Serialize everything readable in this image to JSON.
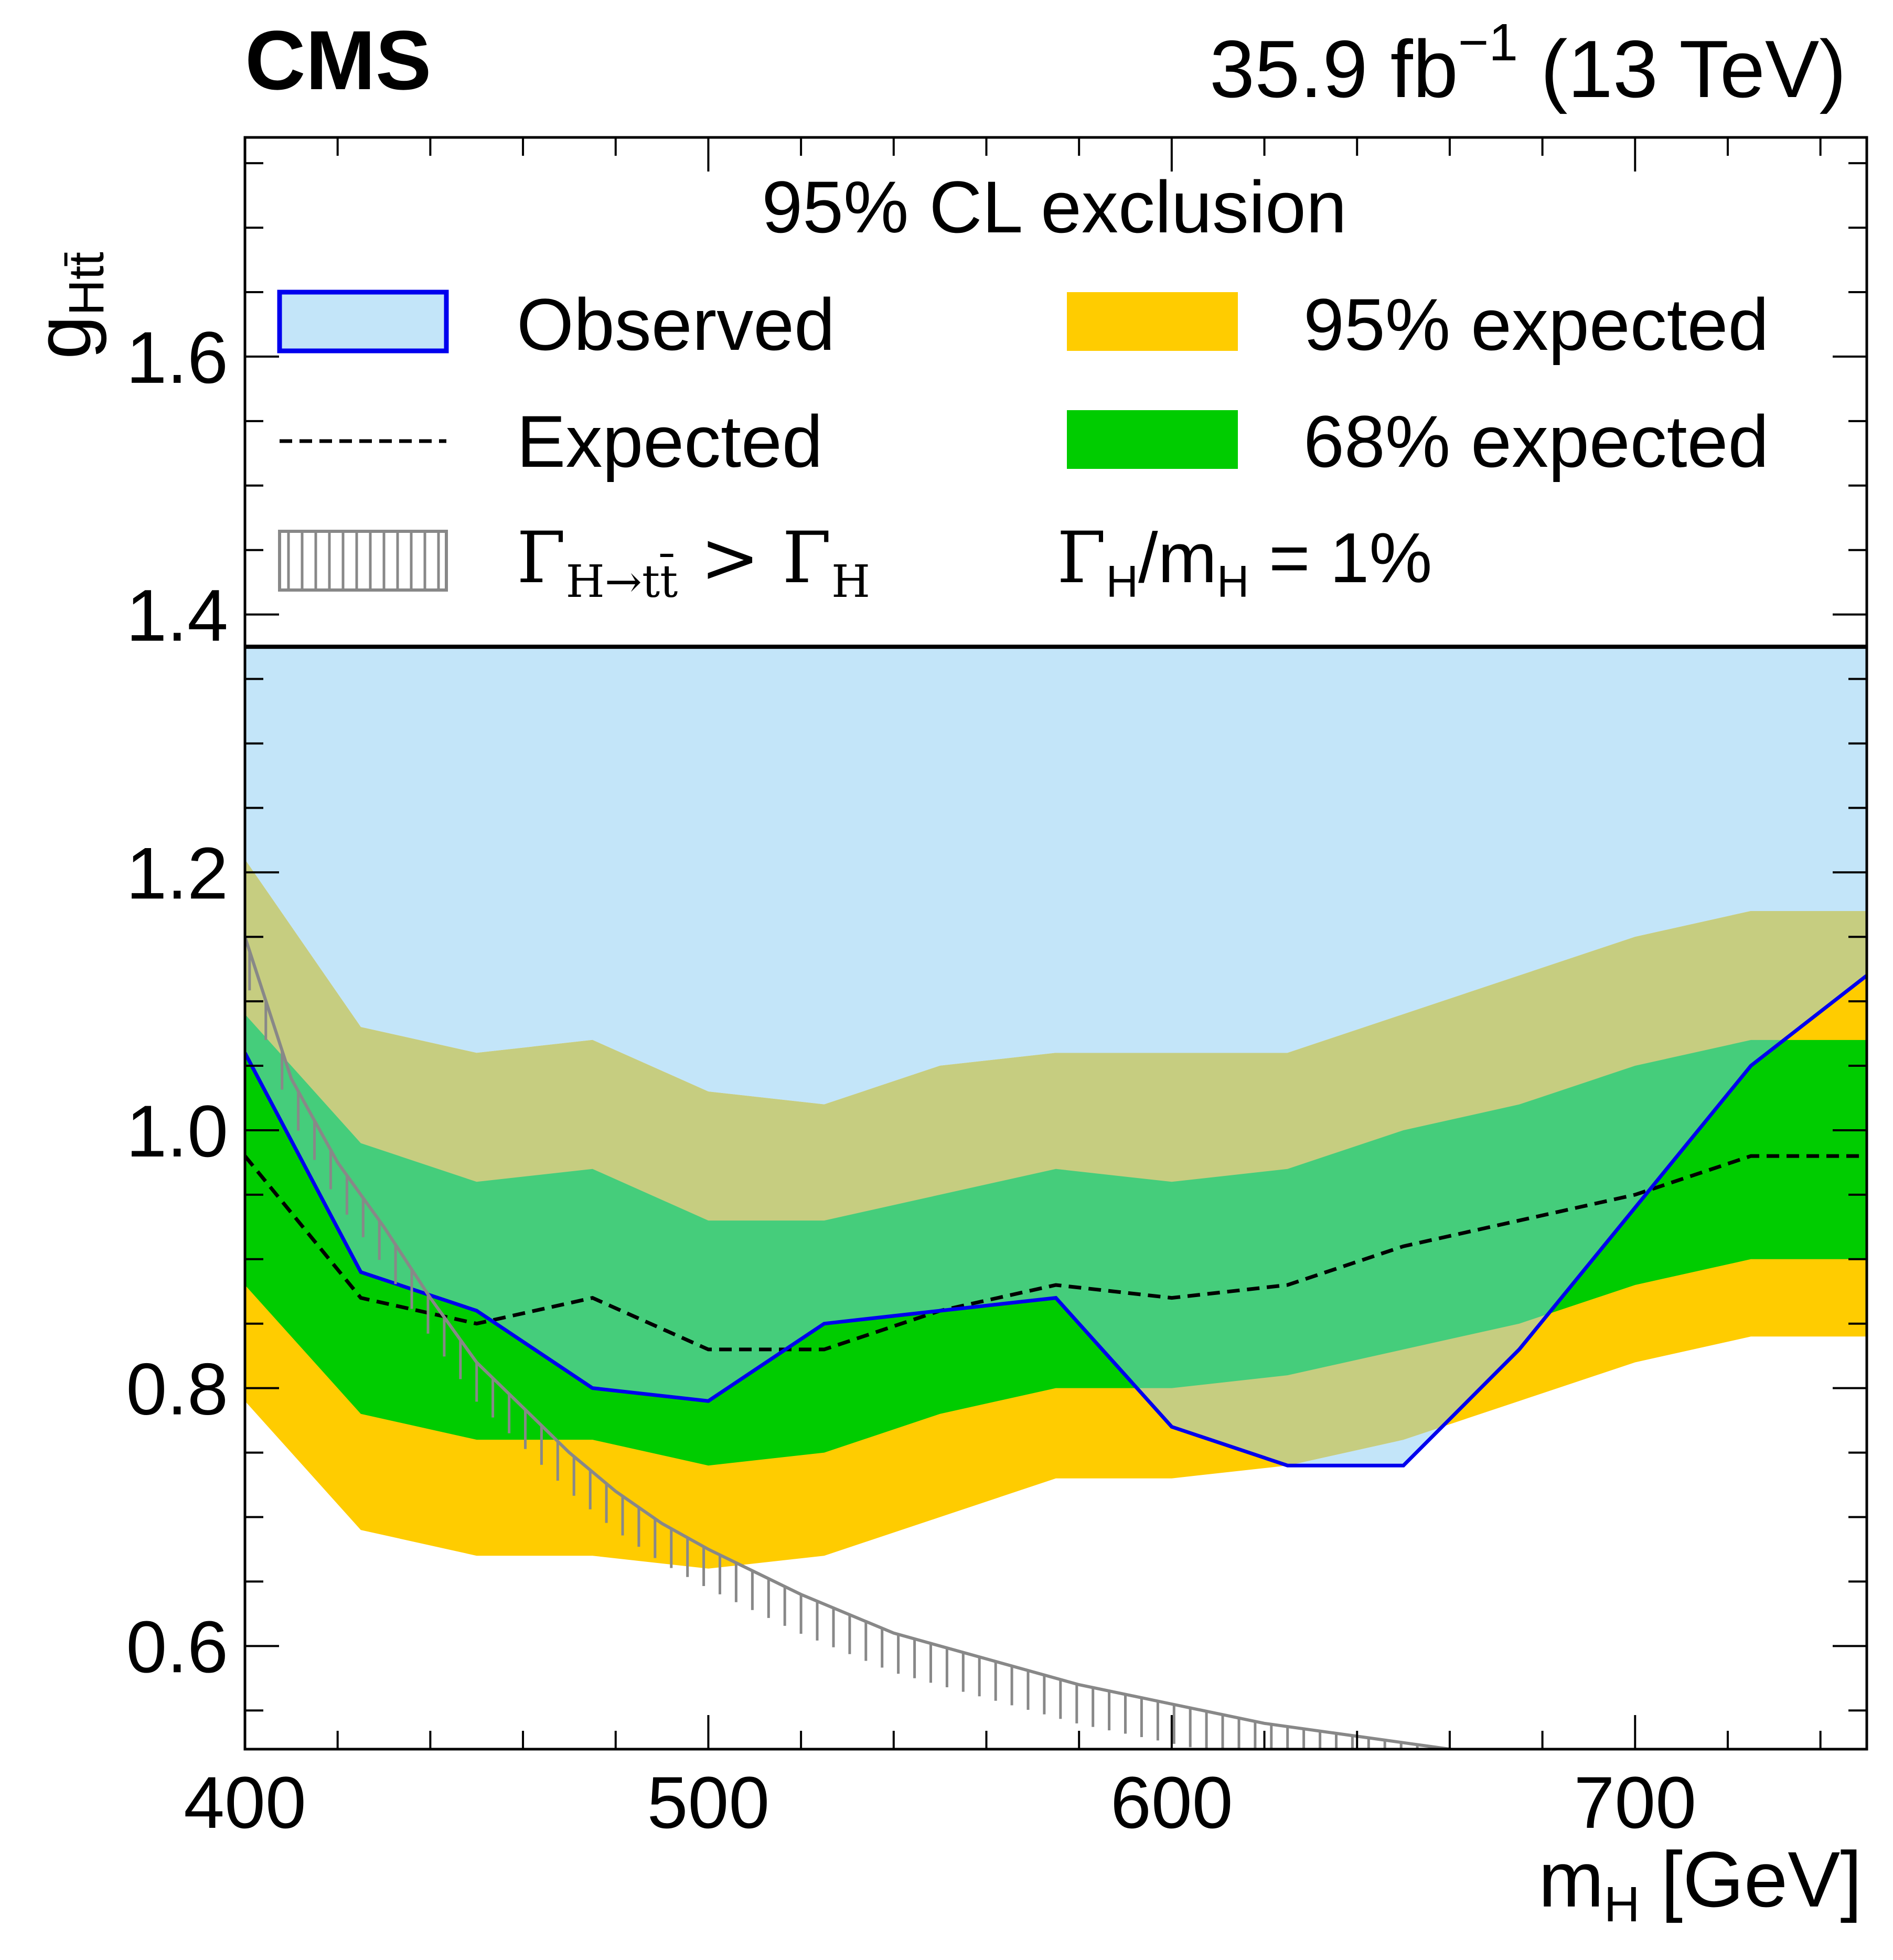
{
  "header": {
    "experiment": "CMS",
    "lumi_value": "35.9 fb",
    "lumi_exponent": "−1",
    "lumi_energy": " (13 TeV)"
  },
  "legend": {
    "title": "95% CL exclusion",
    "observed": "Observed",
    "expected": "Expected",
    "band95": "95% expected",
    "band68": "68% expected",
    "unphysical_gamma": "Γ",
    "unphysical_sub": "H→tt̄",
    "unphysical_rel": " > Γ",
    "unphysical_sub2": "H",
    "width_gamma": "Γ",
    "width_sub": "H",
    "width_mid": "/m",
    "width_sub2": "H",
    "width_end": " = 1%"
  },
  "axes": {
    "ylabel_main": "g",
    "ylabel_sub": "Htt̄",
    "xlabel_main": "m",
    "xlabel_sub": "H",
    "xlabel_unit": "[GeV]"
  },
  "colors": {
    "observed_fill": "#c3e5f9",
    "observed_line": "#0000ee",
    "band95": "#ffcc00",
    "band68": "#00cc00",
    "band95_over_obs": "#c6cd80",
    "band68_over_obs": "#45cd7b",
    "expected_line": "#000000",
    "hatch": "#888888"
  },
  "chart_data": {
    "type": "line",
    "xlim": [
      400,
      750
    ],
    "ylim": [
      0.52,
      1.77
    ],
    "x_ticks": [
      400,
      500,
      600,
      700
    ],
    "y_ticks": [
      0.6,
      0.8,
      1.0,
      1.2,
      1.4,
      1.6
    ],
    "x_tick_labels": [
      "400",
      "500",
      "600",
      "700"
    ],
    "y_tick_labels": [
      "0.6",
      "0.8",
      "1.0",
      "1.2",
      "1.4",
      "1.6"
    ],
    "x": [
      400,
      425,
      450,
      475,
      500,
      525,
      550,
      575,
      600,
      625,
      650,
      675,
      700,
      725,
      750
    ],
    "observed": [
      1.06,
      0.89,
      0.86,
      0.8,
      0.79,
      0.85,
      0.86,
      0.87,
      0.77,
      0.74,
      0.74,
      0.83,
      0.94,
      1.05,
      1.12
    ],
    "observed_upper": 1.375,
    "expected": [
      0.98,
      0.87,
      0.85,
      0.87,
      0.83,
      0.83,
      0.86,
      0.88,
      0.87,
      0.88,
      0.91,
      0.93,
      0.95,
      0.98,
      0.98
    ],
    "band68_low": [
      0.88,
      0.78,
      0.76,
      0.76,
      0.74,
      0.75,
      0.78,
      0.8,
      0.8,
      0.81,
      0.83,
      0.85,
      0.88,
      0.9,
      0.9
    ],
    "band68_high": [
      1.09,
      0.99,
      0.96,
      0.97,
      0.93,
      0.93,
      0.95,
      0.97,
      0.96,
      0.97,
      1.0,
      1.02,
      1.05,
      1.07,
      1.07
    ],
    "band95_low": [
      0.79,
      0.69,
      0.67,
      0.67,
      0.66,
      0.67,
      0.7,
      0.73,
      0.73,
      0.74,
      0.76,
      0.79,
      0.82,
      0.84,
      0.84
    ],
    "band95_high": [
      1.21,
      1.08,
      1.06,
      1.07,
      1.03,
      1.02,
      1.05,
      1.06,
      1.06,
      1.06,
      1.09,
      1.12,
      1.15,
      1.17,
      1.17
    ],
    "unphysical_boundary": {
      "x": [
        400,
        410,
        420,
        430,
        440,
        450,
        460,
        470,
        480,
        490,
        500,
        520,
        540,
        560,
        580,
        600,
        620,
        640,
        660,
        680,
        700,
        720,
        740,
        750
      ],
      "y": [
        1.15,
        1.04,
        0.975,
        0.925,
        0.87,
        0.82,
        0.785,
        0.75,
        0.72,
        0.695,
        0.675,
        0.64,
        0.61,
        0.59,
        0.57,
        0.555,
        0.54,
        0.53,
        0.52,
        0.51,
        0.505,
        0.495,
        0.485,
        0.48
      ]
    }
  }
}
